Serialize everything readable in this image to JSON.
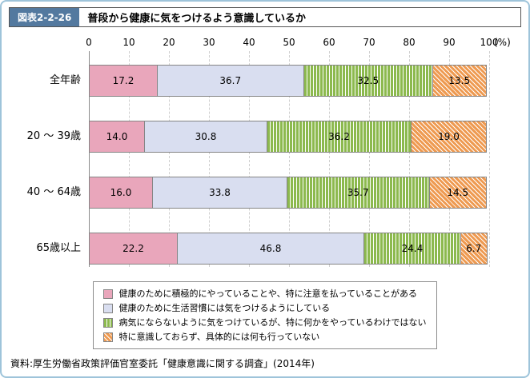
{
  "figure": {
    "label": "図表2-2-26",
    "title": "普段から健康に気をつけるよう意識しているか"
  },
  "axis": {
    "tick_values": [
      0,
      10,
      20,
      30,
      40,
      50,
      60,
      70,
      80,
      90,
      100
    ],
    "unit_label": "(%)"
  },
  "chart_data": {
    "type": "bar",
    "orientation": "horizontal",
    "stacked": true,
    "xlim": [
      0,
      100
    ],
    "grid": true,
    "legend_position": "bottom",
    "categories": [
      "全年齢",
      "20 〜 39歳",
      "40 〜 64歳",
      "65歳以上"
    ],
    "series": [
      {
        "name": "健康のために積極的にやっていることや、特に注意を払っていることがある",
        "color": "#e9a6bb",
        "pattern": "solid",
        "values": [
          17.2,
          14.0,
          16.0,
          22.2
        ]
      },
      {
        "name": "健康のために生活習慣には気をつけるようにしている",
        "color": "#d9def0",
        "pattern": "solid",
        "values": [
          36.7,
          30.8,
          33.8,
          46.8
        ]
      },
      {
        "name": "病気にならないように気をつけているが、特に何かをやっているわけではない",
        "color": "#8cb94e",
        "pattern": "vertical-stripes",
        "values": [
          32.5,
          36.2,
          35.7,
          24.4
        ]
      },
      {
        "name": "特に意識しておらず、具体的には何も行っていない",
        "color": "#ee9a51",
        "pattern": "diagonal-stripes",
        "values": [
          13.5,
          19.0,
          14.5,
          6.7
        ]
      }
    ],
    "accent_colors": {
      "header_label_bg": "#53799f",
      "frame_border": "#9ec4da"
    }
  },
  "source": "資料:厚生労働省政策評価官室委託「健康意識に関する調査」(2014年)"
}
